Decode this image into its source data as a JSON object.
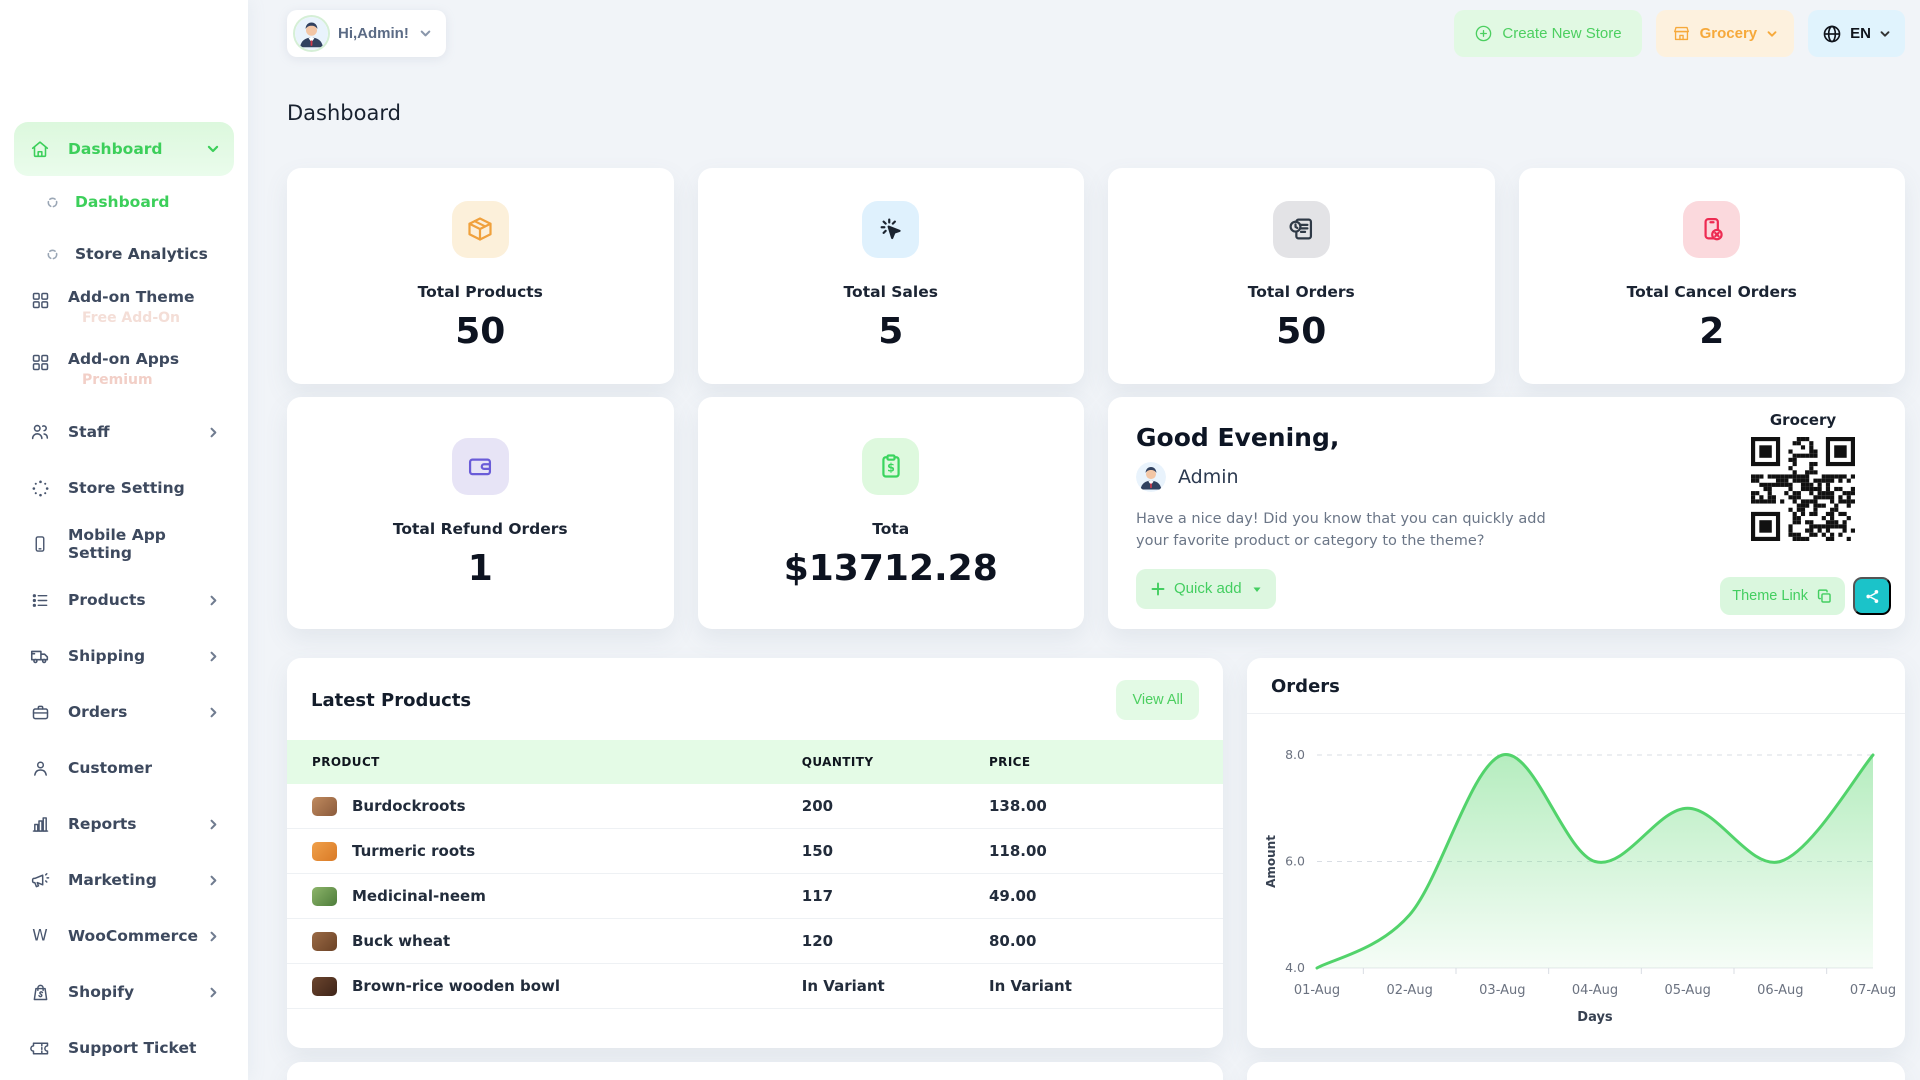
{
  "topbar": {
    "greeting": "Hi,Admin!",
    "create_new_store": "Create New Store",
    "store_name": "Grocery",
    "language": "EN"
  },
  "page_title": "Dashboard",
  "sidebar": {
    "items": [
      {
        "label": "Dashboard"
      },
      {
        "label": "Dashboard"
      },
      {
        "label": "Store Analytics"
      },
      {
        "label": "Add-on Theme",
        "badge": "Free Add-On"
      },
      {
        "label": "Add-on Apps",
        "badge": "Premium"
      },
      {
        "label": "Staff"
      },
      {
        "label": "Store Setting"
      },
      {
        "label": "Mobile App Setting"
      },
      {
        "label": "Products"
      },
      {
        "label": "Shipping"
      },
      {
        "label": "Orders"
      },
      {
        "label": "Customer"
      },
      {
        "label": "Reports"
      },
      {
        "label": "Marketing"
      },
      {
        "label": "WooCommerce"
      },
      {
        "label": "Shopify"
      },
      {
        "label": "Support Ticket"
      }
    ]
  },
  "stats": [
    {
      "label": "Total Products",
      "value": "50",
      "icon": "package-icon",
      "icon_color": "#f0a13c",
      "icon_bg": "#fcf0da"
    },
    {
      "label": "Total Sales",
      "value": "5",
      "icon": "cursor-click-icon",
      "icon_color": "#1b2430",
      "icon_bg": "#dff1fd"
    },
    {
      "label": "Total Orders",
      "value": "50",
      "icon": "order-document-icon",
      "icon_color": "#2f3a47",
      "icon_bg": "#e3e3e6"
    },
    {
      "label": "Total Cancel Orders",
      "value": "2",
      "icon": "cancel-order-icon",
      "icon_color": "#ed2b52",
      "icon_bg": "#fbd9dd"
    },
    {
      "label": "Total Refund Orders",
      "value": "1",
      "icon": "wallet-icon",
      "icon_color": "#6a5cd8",
      "icon_bg": "#e7e4f6"
    },
    {
      "label": "Tota",
      "value": "$13712.28",
      "icon": "clipboard-dollar-icon",
      "icon_color": "#3bd55f",
      "icon_bg": "#def9de"
    }
  ],
  "greeting_card": {
    "title": "Good Evening,",
    "user": "Admin",
    "message": "Have a nice day! Did you know that you can quickly add your favorite product or category to the theme?",
    "quick_add_label": "Quick add",
    "store_label": "Grocery",
    "theme_link_label": "Theme Link"
  },
  "latest_products": {
    "title": "Latest Products",
    "view_all_label": "View All",
    "columns": [
      "Product",
      "Quantity",
      "Price"
    ],
    "rows": [
      {
        "product": "Burdockroots",
        "quantity": "200",
        "price": "138.00",
        "thumb_colors": [
          "#c08a5e",
          "#8a5a3b"
        ]
      },
      {
        "product": "Turmeric roots",
        "quantity": "150",
        "price": "118.00",
        "thumb_colors": [
          "#f0a04a",
          "#d97a26"
        ]
      },
      {
        "product": "Medicinal-neem",
        "quantity": "117",
        "price": "49.00",
        "thumb_colors": [
          "#8db56a",
          "#4d7c3a"
        ]
      },
      {
        "product": "Buck wheat",
        "quantity": "120",
        "price": "80.00",
        "thumb_colors": [
          "#9a6a45",
          "#6b4226"
        ]
      },
      {
        "product": "Brown-rice wooden bowl",
        "quantity": "In Variant",
        "price": "In Variant",
        "thumb_colors": [
          "#6b452e",
          "#3e2418"
        ]
      }
    ]
  },
  "chart_data": {
    "type": "area",
    "title": "Orders",
    "x": [
      "01-Aug",
      "02-Aug",
      "03-Aug",
      "04-Aug",
      "05-Aug",
      "06-Aug",
      "07-Aug"
    ],
    "series": [
      {
        "name": "Amount",
        "values": [
          4,
          5,
          8,
          6,
          7,
          6,
          8
        ]
      }
    ],
    "xlabel": "Days",
    "ylabel": "Amount",
    "ylim": [
      4,
      8
    ],
    "yticks": [
      8.0,
      6.0,
      4.0
    ],
    "grid": "dashed-horizontal",
    "legend": "none",
    "line_color": "#52d36b",
    "fill_color": "#79de8a"
  },
  "colors": {
    "accent_green": "#3ccf5a",
    "light_green_bg": "#e1f9e3",
    "orange": "#f6a93b",
    "light_orange_bg": "#fdf1de",
    "light_blue_bg": "#e0f3fd",
    "teal_share": "#1bc3c9",
    "table_header_bg": "#e4fbe6",
    "page_bg": "#f1f4f8",
    "badge_free": "#f4ded7",
    "badge_premium": "#f2cfc7"
  }
}
